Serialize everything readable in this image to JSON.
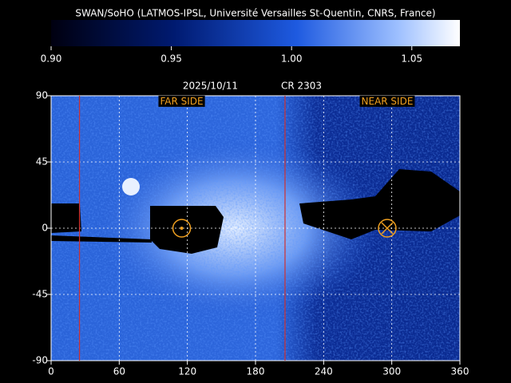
{
  "chart_data": {
    "type": "map",
    "title": "SWAN/SoHO (LATMOS-IPSL, Université Versailles St-Quentin, CNRS, France)",
    "date": "2025/10/11",
    "rotation": "CR 2303",
    "clim": [
      0.9,
      1.07
    ],
    "cticks": [
      {
        "value": 0.9,
        "label": "0.90"
      },
      {
        "value": 0.95,
        "label": "0.95"
      },
      {
        "value": 1.0,
        "label": "1.00"
      },
      {
        "value": 1.05,
        "label": "1.05"
      }
    ],
    "xlim": [
      0,
      360
    ],
    "xticks": [
      0,
      60,
      120,
      180,
      240,
      300,
      360
    ],
    "ylim": [
      -90,
      90
    ],
    "yticks": [
      -90,
      -45,
      0,
      45,
      90
    ],
    "grid": true,
    "vlines": [
      25,
      206
    ],
    "vline_color": "#d03030",
    "markers": [
      {
        "x": 115,
        "y": 0,
        "symbol": "dot"
      },
      {
        "x": 296,
        "y": 0,
        "symbol": "cross"
      }
    ],
    "marker_color": "#f0a020",
    "annotations": [
      {
        "text": "FAR SIDE",
        "x": 115,
        "y": 86
      },
      {
        "text": "NEAR SIDE",
        "x": 296,
        "y": 86
      }
    ]
  }
}
